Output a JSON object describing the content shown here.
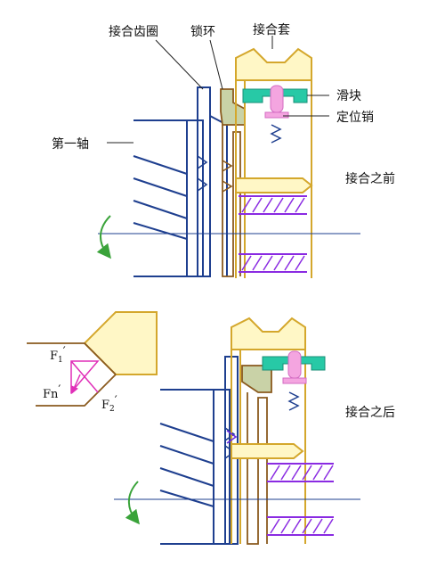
{
  "labels": {
    "ring_gear": "接合齿圈",
    "lock_ring": "锁环",
    "sleeve": "接合套",
    "slider": "滑块",
    "locating_pin": "定位销",
    "first_shaft": "第一轴",
    "before": "接合之前",
    "after": "接合之后"
  },
  "forces": {
    "f1": "F",
    "f1_sub": "1",
    "fn": "Fn",
    "f2": "F",
    "f2_sub": "2",
    "prime": "′"
  },
  "colors": {
    "shaft": "#1e3f8f",
    "lock_ring": "#8a5a1e",
    "lock_ring_fill": "#c9d2a7",
    "sleeve": "#d4a72c",
    "slider": "#27c9a6",
    "pin": "#f4a5e0",
    "spline_hatch": "#8a2be2",
    "force_triangle": "#e02fb8",
    "rotation_arrow": "#3aa33a"
  },
  "icons": {
    "rotation": "curved-arrow-icon"
  }
}
